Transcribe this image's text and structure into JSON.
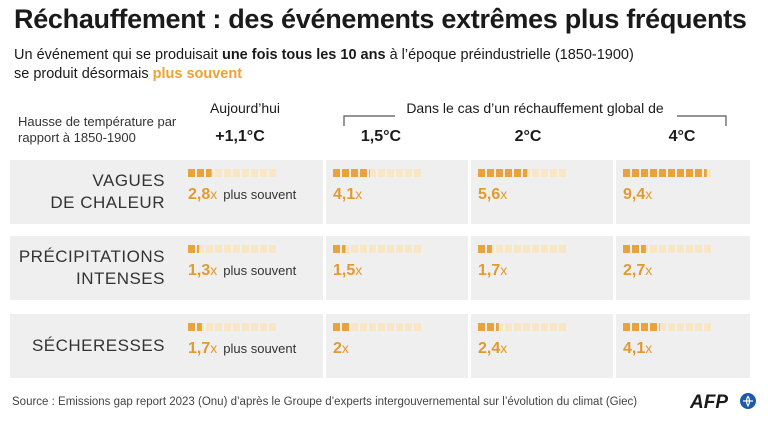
{
  "header": {
    "title": "Réchauffement : des événements extrêmes plus fréquents",
    "subtitle_line1_a": "Un événement qui se produisait",
    "subtitle_line1_b": "une fois tous les 10 ans",
    "subtitle_line1_c": "à l’époque préindustrielle (1850-1900)",
    "subtitle_line2_a": "se produit désormais",
    "subtitle_line2_b": "plus souvent"
  },
  "axis_label": "Hausse de température par rapport à 1850-1900",
  "columns": {
    "today_label": "Aujourd’hui",
    "future_label": "Dans le cas d’un réchauffement global de"
  },
  "colors": {
    "filled": "#e8a33d",
    "empty": "#f8e6c4",
    "accent": "#f0a030",
    "band": "#efefef"
  },
  "chart_data": {
    "type": "table",
    "title": "Réchauffement : des événements extrêmes plus fréquents",
    "scenarios": [
      "+1,1°C",
      "1,5°C",
      "2°C",
      "4°C"
    ],
    "unit_suffix": "x",
    "today_note": "plus souvent",
    "squares_per_cell": 10,
    "series": [
      {
        "name": "VAGUES DE CHALEUR",
        "values": [
          2.8,
          4.1,
          5.6,
          9.4
        ],
        "labels": [
          "2,8",
          "4,1",
          "5,6",
          "9,4"
        ]
      },
      {
        "name": "PRÉCIPITATIONS INTENSES",
        "values": [
          1.3,
          1.5,
          1.7,
          2.7
        ],
        "labels": [
          "1,3",
          "1,5",
          "1,7",
          "2,7"
        ]
      },
      {
        "name": "SÉCHERESSES",
        "values": [
          1.7,
          2.0,
          2.4,
          4.1
        ],
        "labels": [
          "1,7",
          "2",
          "2,4",
          "4,1"
        ]
      }
    ]
  },
  "row_labels": [
    {
      "line1": "VAGUES",
      "line2": "DE CHALEUR"
    },
    {
      "line1": "PRÉCIPITATIONS",
      "line2": "INTENSES"
    },
    {
      "line1": "SÉCHERESSES",
      "line2": ""
    }
  ],
  "footer": {
    "source": "Source : Emissions gap report 2023 (Onu) d’après le Groupe d’experts intergouvernemental sur l’évolution du climat (Giec)",
    "logo_text": "AFP"
  }
}
